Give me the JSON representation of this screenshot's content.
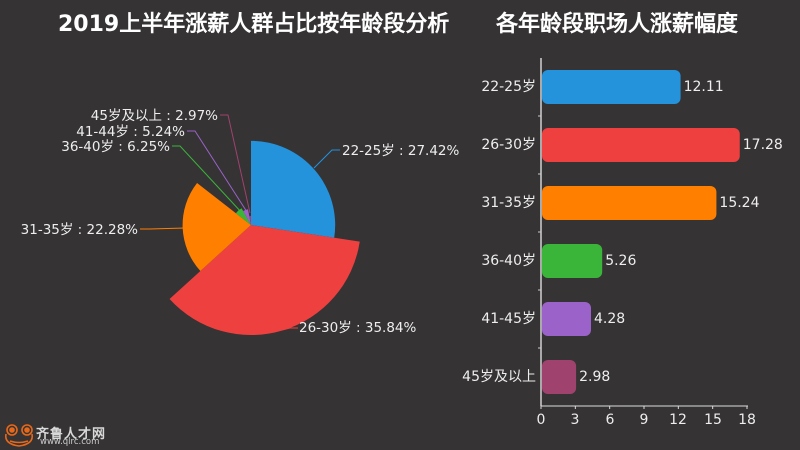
{
  "left_chart": {
    "title": "2019上半年涨薪人群占比按年龄段分析"
  },
  "right_chart": {
    "title": "各年龄段职场人涨薪幅度"
  },
  "pie_labels": [
    "22-25岁 : 27.42%",
    "26-30岁 : 35.84%",
    "31-35岁 : 22.28%",
    "36-40岁 : 6.25%",
    "41-44岁 : 5.24%",
    "45岁及以上 : 2.97%"
  ],
  "bar_categories": [
    "22-25岁",
    "26-30岁",
    "31-35岁",
    "36-40岁",
    "41-45岁",
    "45岁及以上"
  ],
  "bar_value_labels": [
    "12.11",
    "17.28",
    "15.24",
    "5.26",
    "4.28",
    "2.98"
  ],
  "x_ticks": [
    "0",
    "3",
    "6",
    "9",
    "12",
    "15",
    "18"
  ],
  "logo": {
    "name": "齐鲁人才网",
    "url": "www.qlrc.com"
  },
  "colors": {
    "background": "#353334",
    "blue": "#2592dc",
    "red": "#ef4040",
    "orange": "#ff7f00",
    "green": "#3ab53a",
    "purple": "#9b63c9",
    "maroon": "#a0426e",
    "logo_orange": "#e8681a"
  },
  "chart_data": [
    {
      "type": "pie",
      "subtype": "nightingale-rose (radius and angle proportional to value)",
      "title": "2019上半年涨薪人群占比按年龄段分析",
      "categories": [
        "22-25岁",
        "26-30岁",
        "31-35岁",
        "36-40岁",
        "41-44岁",
        "45岁及以上"
      ],
      "values": [
        27.42,
        35.84,
        22.28,
        6.25,
        5.24,
        2.97
      ],
      "unit": "%",
      "colors": [
        "#2592dc",
        "#ef4040",
        "#ff7f00",
        "#3ab53a",
        "#9b63c9",
        "#a0426e"
      ],
      "labels": [
        "22-25岁 : 27.42%",
        "26-30岁 : 35.84%",
        "31-35岁 : 22.28%",
        "36-40岁 : 6.25%",
        "41-44岁 : 5.24%",
        "45岁及以上 : 2.97%"
      ],
      "start_angle": "12 o'clock, clockwise"
    },
    {
      "type": "bar",
      "orientation": "horizontal",
      "title": "各年龄段职场人涨薪幅度",
      "categories": [
        "22-25岁",
        "26-30岁",
        "31-35岁",
        "36-40岁",
        "41-45岁",
        "45岁及以上"
      ],
      "values": [
        12.11,
        17.28,
        15.24,
        5.26,
        4.28,
        2.98
      ],
      "colors": [
        "#2592dc",
        "#ef4040",
        "#ff7f00",
        "#3ab53a",
        "#9b63c9",
        "#a0426e"
      ],
      "xlabel": "",
      "ylabel": "",
      "xlim": [
        0,
        18
      ],
      "x_ticks": [
        0,
        3,
        6,
        9,
        12,
        15,
        18
      ],
      "grid": false,
      "data_labels": true
    }
  ]
}
